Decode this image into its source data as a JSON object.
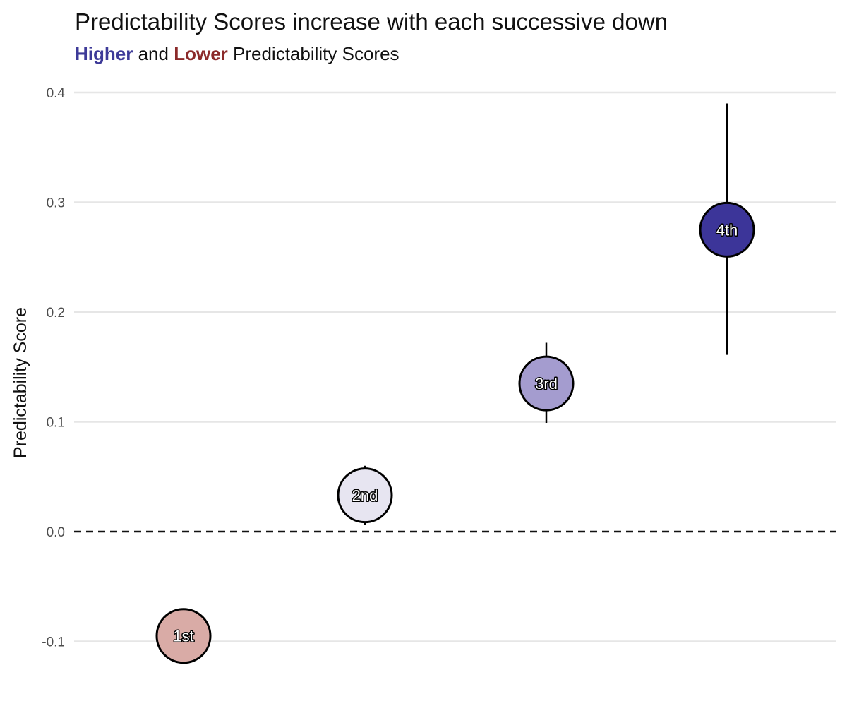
{
  "chart_data": {
    "type": "scatter",
    "title": "Predictability Scores increase with each successive down",
    "subtitle": {
      "higher": "Higher",
      "and": "and",
      "lower": "Lower",
      "rest": "Predictability Scores"
    },
    "xlabel": "",
    "ylabel": "Predictability Score",
    "ylim": [
      -0.13,
      0.4
    ],
    "yticks": [
      -0.1,
      0.0,
      0.1,
      0.2,
      0.3,
      0.4
    ],
    "ytick_labels": [
      "-0.1",
      "0.0",
      "0.1",
      "0.2",
      "0.3",
      "0.4"
    ],
    "grid": "horizontal",
    "reference_line": {
      "y": 0.0,
      "style": "dashed"
    },
    "points": [
      {
        "label": "1st",
        "y": -0.095,
        "ci": null,
        "color": "#d9aba6"
      },
      {
        "label": "2nd",
        "y": 0.033,
        "ci": [
          0.006,
          0.06
        ],
        "color": "#e7e5f1"
      },
      {
        "label": "3rd",
        "y": 0.135,
        "ci": [
          0.099,
          0.172
        ],
        "color": "#a49ccf"
      },
      {
        "label": "4th",
        "y": 0.275,
        "ci": [
          0.161,
          0.39
        ],
        "color": "#3c3599"
      }
    ],
    "colors": {
      "higher": "#3d3a98",
      "lower": "#8b2a2a"
    }
  }
}
